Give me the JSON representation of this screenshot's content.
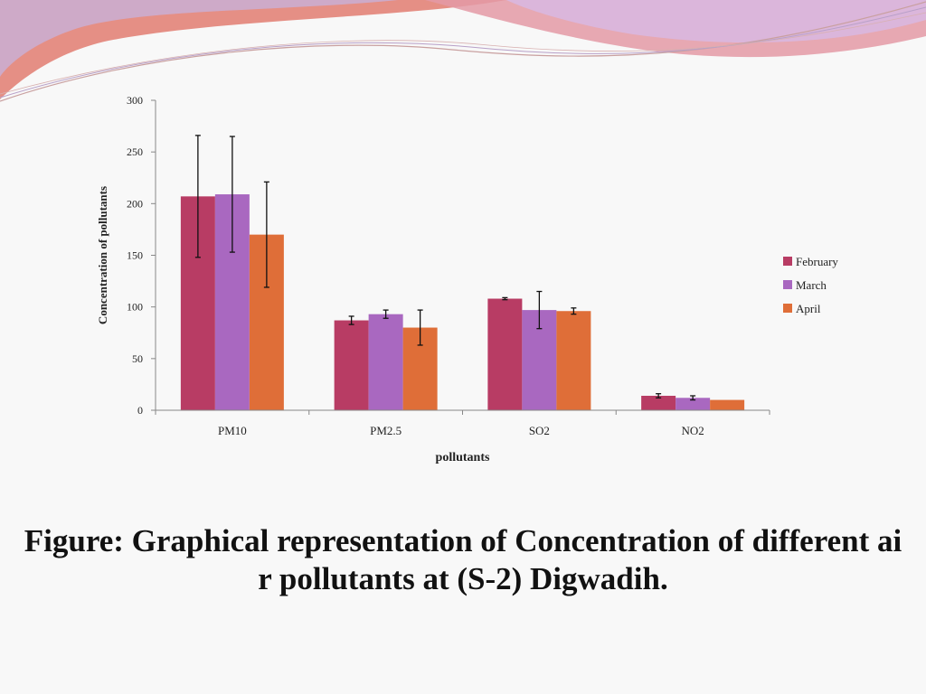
{
  "caption": "Figure: Graphical representation of Concentration of different ai\nr pollutants at (S-2) Digwadih.",
  "chart_data": {
    "type": "bar",
    "title": "",
    "xlabel": "pollutants",
    "ylabel": "Concentration of pollutants",
    "ylim": [
      0,
      300
    ],
    "yticks": [
      "0",
      "50",
      "100",
      "150",
      "200",
      "250",
      "300"
    ],
    "grid": false,
    "legend": "right",
    "categories": [
      "PM10",
      "PM2.5",
      "SO2",
      "NO2"
    ],
    "series": [
      {
        "name": "February",
        "color": "#b83c64",
        "values": [
          207,
          87,
          108,
          14
        ],
        "errors": [
          59,
          4,
          1,
          2
        ]
      },
      {
        "name": "March",
        "color": "#a968c0",
        "values": [
          209,
          93,
          97,
          12
        ],
        "errors": [
          56,
          4,
          18,
          2
        ]
      },
      {
        "name": "April",
        "color": "#df6e38",
        "values": [
          170,
          80,
          96,
          10
        ],
        "errors": [
          51,
          17,
          3,
          0
        ]
      }
    ]
  },
  "colors": {
    "decor_salmon": "#e58f85",
    "decor_lavender": "#c8b0d8",
    "decor_pink": "#e49aa6"
  }
}
